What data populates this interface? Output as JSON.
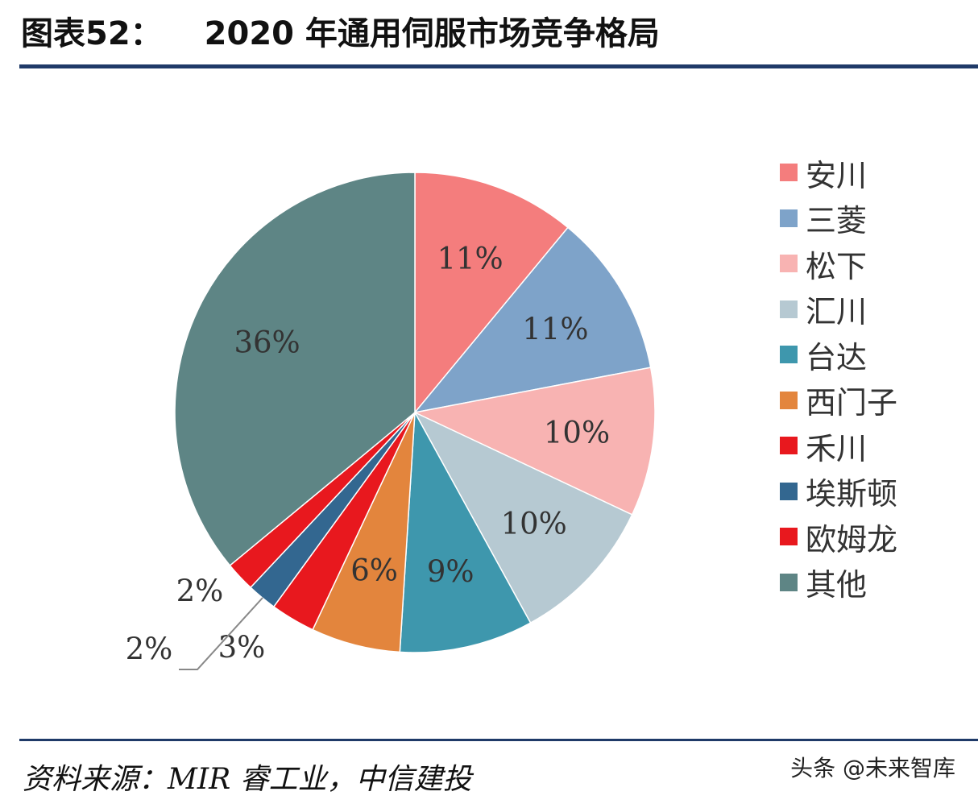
{
  "header": {
    "figure_no": "图表52：",
    "title": "2020 年通用伺服市场竞争格局"
  },
  "chart_data": {
    "type": "pie",
    "title": "2020 年通用伺服市场竞争格局",
    "slices": [
      {
        "name": "安川",
        "value": 11,
        "label": "11%",
        "color": "#f47d7d"
      },
      {
        "name": "三菱",
        "value": 11,
        "label": "11%",
        "color": "#7ea3c9"
      },
      {
        "name": "松下",
        "value": 10,
        "label": "10%",
        "color": "#f8b3b2"
      },
      {
        "name": "汇川",
        "value": 10,
        "label": "10%",
        "color": "#b6c9d2"
      },
      {
        "name": "台达",
        "value": 9,
        "label": "9%",
        "color": "#3e97ad"
      },
      {
        "name": "西门子",
        "value": 6,
        "label": "6%",
        "color": "#e3853d"
      },
      {
        "name": "禾川",
        "value": 3,
        "label": "3%",
        "color": "#e8181e"
      },
      {
        "name": "埃斯顿",
        "value": 2,
        "label": "2%",
        "color": "#336790"
      },
      {
        "name": "欧姆龙",
        "value": 2,
        "label": "2%",
        "color": "#e8181e"
      },
      {
        "name": "其他",
        "value": 36,
        "label": "36%",
        "color": "#5e8585"
      }
    ],
    "legend_position": "right"
  },
  "footer": {
    "source": "资料来源：MIR 睿工业，中信建投",
    "watermark": "头条 @未来智库"
  }
}
